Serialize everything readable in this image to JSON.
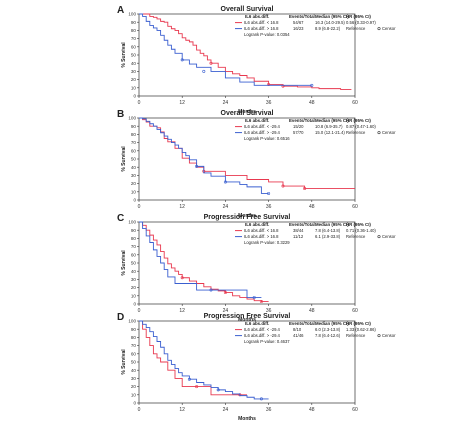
{
  "chart_data": [
    {
      "type": "line",
      "letter": "A",
      "title": "Overall Survival",
      "xlabel": "Months",
      "ylabel": "% Survival",
      "xlim": [
        0,
        60
      ],
      "ylim": [
        0,
        100
      ],
      "xticks": [
        0,
        12,
        24,
        36,
        48,
        60
      ],
      "yticks": [
        0,
        10,
        20,
        30,
        40,
        50,
        60,
        70,
        80,
        90,
        100
      ],
      "legend": {
        "headers": [
          "IL6 abs.diff.",
          "Events/Total",
          "Median (95% CI)",
          "HR (95% CI)"
        ],
        "rows": [
          {
            "label": "IL6 abs.diff. < 16.8",
            "events": "54/67",
            "median": "16.3 (14.0-29.5)",
            "hr": "0.56 (0.33-0.97)"
          },
          {
            "label": "IL6 abs.diff. > 16.8",
            "events": "16/23",
            "median": "8.9 (6.8-22.2)",
            "hr": "Reference"
          }
        ],
        "censor_label": "Censor",
        "logrank": "Logrank P-value: 0.0354"
      },
      "series": [
        {
          "color": "#e8384f",
          "x": [
            0,
            1,
            2,
            3,
            4,
            5,
            6,
            7,
            8,
            9,
            10,
            11,
            12,
            13,
            14,
            15,
            16,
            17,
            18,
            19,
            20,
            22,
            24,
            26,
            28,
            30,
            32,
            36,
            40,
            44,
            48,
            50,
            52,
            56,
            58,
            59
          ],
          "y": [
            100,
            100,
            100,
            97,
            96,
            94,
            91,
            90,
            85,
            82,
            80,
            76,
            71,
            68,
            66,
            62,
            56,
            52,
            49,
            44,
            40,
            35,
            30,
            27,
            25,
            22,
            18,
            14,
            12,
            11,
            10,
            9,
            9,
            8,
            8,
            8
          ],
          "censor": [
            [
              20,
              40
            ],
            [
              36,
              14
            ],
            [
              40,
              12
            ]
          ]
        },
        {
          "color": "#3a5fd0",
          "x": [
            0,
            1,
            2,
            3,
            4,
            5,
            6,
            7,
            8,
            9,
            10,
            12,
            14,
            16,
            20,
            24,
            28,
            32,
            36,
            40,
            44,
            48
          ],
          "y": [
            100,
            97,
            91,
            86,
            83,
            80,
            74,
            68,
            62,
            57,
            52,
            44,
            39,
            35,
            30,
            22,
            17,
            13,
            13,
            13,
            13,
            13
          ],
          "censor": [
            [
              12,
              44
            ],
            [
              18,
              30
            ],
            [
              48,
              13
            ]
          ]
        }
      ]
    },
    {
      "type": "line",
      "letter": "B",
      "title": "Overall Survival",
      "xlabel": "Months",
      "ylabel": "% Survival",
      "xlim": [
        0,
        60
      ],
      "ylim": [
        0,
        100
      ],
      "xticks": [
        0,
        12,
        24,
        36,
        48,
        60
      ],
      "yticks": [
        0,
        10,
        20,
        30,
        40,
        50,
        60,
        70,
        80,
        90,
        100
      ],
      "legend": {
        "headers": [
          "IL6 abs.diff.",
          "Events/Total",
          "Median (95% CI)",
          "HR (95% CI)"
        ],
        "rows": [
          {
            "label": "IL6 abs.diff. < -29.4",
            "events": "15/20",
            "median": "10.8 (6.9-35.7)",
            "hr": "0.87 (0.47-1.60)"
          },
          {
            "label": "IL6 abs.diff. > -29.4",
            "events": "57/70",
            "median": "15.0 (12.1-21.4)",
            "hr": "Reference"
          }
        ],
        "censor_label": "Censor",
        "logrank": "Logrank P-value: 0.6516"
      },
      "series": [
        {
          "color": "#e8384f",
          "x": [
            0,
            1,
            2,
            3,
            5,
            6,
            7,
            8,
            10,
            12,
            14,
            16,
            18,
            24,
            30,
            36,
            40,
            46,
            52,
            58,
            60
          ],
          "y": [
            100,
            98,
            95,
            90,
            88,
            83,
            75,
            71,
            63,
            51,
            45,
            40,
            35,
            30,
            25,
            22,
            17,
            14,
            14,
            14,
            14
          ],
          "censor": [
            [
              18,
              35
            ],
            [
              40,
              17
            ],
            [
              46,
              14
            ]
          ]
        },
        {
          "color": "#3a5fd0",
          "x": [
            0,
            1,
            2,
            3,
            4,
            5,
            6,
            7,
            8,
            9,
            10,
            11,
            12,
            13,
            14,
            16,
            18,
            20,
            24,
            28,
            30,
            34,
            36
          ],
          "y": [
            100,
            99,
            96,
            93,
            90,
            86,
            82,
            78,
            74,
            70,
            67,
            63,
            58,
            54,
            49,
            41,
            33,
            29,
            22,
            19,
            16,
            8,
            8
          ],
          "censor": [
            [
              16,
              41
            ],
            [
              24,
              22
            ],
            [
              36,
              8
            ]
          ]
        }
      ]
    },
    {
      "type": "line",
      "letter": "C",
      "title": "Progression Free Survival",
      "xlabel": "Months",
      "ylabel": "% Survival",
      "xlim": [
        0,
        60
      ],
      "ylim": [
        0,
        100
      ],
      "xticks": [
        0,
        12,
        24,
        36,
        48,
        60
      ],
      "yticks": [
        0,
        10,
        20,
        30,
        40,
        50,
        60,
        70,
        80,
        90,
        100
      ],
      "legend": {
        "headers": [
          "IL6 abs.diff.",
          "Events/Total",
          "Median (95% CI)",
          "HR (95% CI)"
        ],
        "rows": [
          {
            "label": "IL6 abs.diff. < 16.8",
            "events": "38/44",
            "median": "7.8 (6.4-13.8)",
            "hr": "0.71 (0.36-1.40)"
          },
          {
            "label": "IL6 abs.diff. > 16.8",
            "events": "11/12",
            "median": "6.1 (2.9-33.8)",
            "hr": "Reference"
          }
        ],
        "censor_label": "Censor",
        "logrank": "Logrank P-value: 0.3229"
      },
      "series": [
        {
          "color": "#e8384f",
          "x": [
            0,
            1,
            2,
            3,
            4,
            5,
            6,
            7,
            8,
            9,
            10,
            11,
            12,
            14,
            16,
            18,
            20,
            22,
            24,
            26,
            28,
            30,
            32,
            34,
            36
          ],
          "y": [
            100,
            96,
            90,
            84,
            78,
            72,
            64,
            56,
            49,
            44,
            40,
            36,
            32,
            28,
            25,
            21,
            18,
            16,
            14,
            10,
            8,
            6,
            4,
            3,
            3
          ],
          "censor": [
            [
              12,
              32
            ],
            [
              24,
              14
            ],
            [
              34,
              3
            ]
          ]
        },
        {
          "color": "#3a5fd0",
          "x": [
            0,
            1,
            2,
            3,
            4,
            5,
            6,
            7,
            8,
            10,
            12,
            16,
            20,
            24,
            28,
            30,
            32,
            34
          ],
          "y": [
            100,
            92,
            83,
            75,
            66,
            58,
            50,
            42,
            33,
            25,
            25,
            17,
            17,
            17,
            17,
            8,
            8,
            8
          ],
          "censor": [
            [
              20,
              17
            ],
            [
              32,
              8
            ]
          ]
        }
      ]
    },
    {
      "type": "line",
      "letter": "D",
      "title": "Progression Free Survival",
      "xlabel": "Months",
      "ylabel": "% Survival",
      "xlim": [
        0,
        60
      ],
      "ylim": [
        0,
        100
      ],
      "xticks": [
        0,
        12,
        24,
        36,
        48,
        60
      ],
      "yticks": [
        0,
        10,
        20,
        30,
        40,
        50,
        60,
        70,
        80,
        90,
        100
      ],
      "legend": {
        "headers": [
          "IL6 abs.diff.",
          "Events/Total",
          "Median (95% CI)",
          "HR (95% CI)"
        ],
        "rows": [
          {
            "label": "IL6 abs.diff. < -29.4",
            "events": "8/10",
            "median": "6.0 (2.3-13.8)",
            "hr": "1.33 (0.62-2.86)"
          },
          {
            "label": "IL6 abs.diff. > -29.4",
            "events": "41/46",
            "median": "7.8 (6.4-12.6)",
            "hr": "Reference"
          }
        ],
        "censor_label": "Censor",
        "logrank": "Logrank P-value: 0.4637"
      },
      "series": [
        {
          "color": "#e8384f",
          "x": [
            0,
            1,
            2,
            3,
            4,
            5,
            6,
            8,
            10,
            12,
            14,
            16,
            20,
            24,
            28,
            30
          ],
          "y": [
            100,
            90,
            80,
            70,
            60,
            55,
            50,
            40,
            30,
            20,
            20,
            20,
            10,
            10,
            10,
            10
          ],
          "censor": [
            [
              16,
              20
            ],
            [
              28,
              10
            ]
          ]
        },
        {
          "color": "#3a5fd0",
          "x": [
            0,
            1,
            2,
            3,
            4,
            5,
            6,
            7,
            8,
            9,
            10,
            11,
            12,
            14,
            16,
            18,
            20,
            22,
            24,
            26,
            28,
            30,
            32,
            34,
            36
          ],
          "y": [
            100,
            96,
            92,
            87,
            81,
            75,
            68,
            60,
            52,
            47,
            42,
            37,
            33,
            29,
            25,
            22,
            19,
            16,
            14,
            11,
            9,
            7,
            5,
            5,
            5
          ],
          "censor": [
            [
              14,
              29
            ],
            [
              22,
              16
            ],
            [
              34,
              5
            ]
          ]
        }
      ]
    }
  ]
}
